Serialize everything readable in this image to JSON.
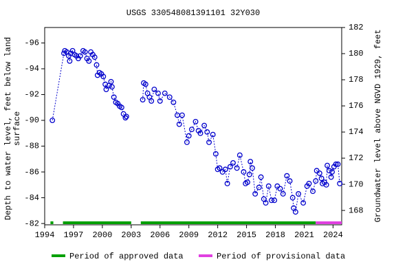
{
  "chart_data": {
    "type": "scatter",
    "title": "USGS 330548081391101 32Y030",
    "ylabel": [
      "Depth to water level, feet below land",
      "surface"
    ],
    "y2label": "Groundwater level above NGVD 1929, feet",
    "xlim": [
      1994,
      2024.9
    ],
    "xticks": [
      1994,
      1997,
      2000,
      2003,
      2006,
      2009,
      2012,
      2015,
      2018,
      2021,
      2024
    ],
    "ylim": [
      -81.9,
      -97.2
    ],
    "yticks": [
      -96,
      -94,
      -92,
      -90,
      -88,
      -86,
      -84,
      -82
    ],
    "y2lim": [
      166.9,
      182
    ],
    "y2ticks": [
      168,
      170,
      172,
      174,
      176,
      178,
      180,
      182
    ],
    "x": [
      1994.8,
      1996.0,
      1996.1,
      1996.3,
      1996.5,
      1996.6,
      1996.7,
      1996.9,
      1997.1,
      1997.3,
      1997.5,
      1997.7,
      1998.0,
      1998.2,
      1998.4,
      1998.6,
      1998.8,
      1999.0,
      1999.2,
      1999.4,
      1999.5,
      1999.7,
      1999.9,
      2000.1,
      2000.3,
      2000.4,
      2000.7,
      2000.9,
      2001.0,
      2001.2,
      2001.4,
      2001.6,
      2001.8,
      2002.0,
      2002.2,
      2002.4,
      2002.5,
      2003.3,
      2004.2,
      2004.3,
      2004.5,
      2004.7,
      2004.9,
      2005.1,
      2005.4,
      2005.8,
      2006.0,
      2006.5,
      2007.0,
      2007.4,
      2007.8,
      2008.0,
      2008.3,
      2008.8,
      2009.0,
      2009.3,
      2009.7,
      2010.0,
      2010.2,
      2010.6,
      2010.9,
      2011.1,
      2011.5,
      2011.8,
      2012.0,
      2012.2,
      2012.5,
      2012.8,
      2013.0,
      2013.3,
      2013.6,
      2014.0,
      2014.3,
      2014.7,
      2014.9,
      2015.1,
      2015.3,
      2015.4,
      2015.6,
      2015.9,
      2016.3,
      2016.5,
      2016.8,
      2017.0,
      2017.3,
      2017.6,
      2017.9,
      2018.2,
      2018.5,
      2018.8,
      2019.2,
      2019.5,
      2019.8,
      2019.9,
      2020.1,
      2020.4,
      2020.9,
      2021.3,
      2021.5,
      2021.9,
      2022.2,
      2022.3,
      2022.6,
      2022.8,
      2022.9,
      2023.1,
      2023.3,
      2023.4,
      2023.6,
      2023.8,
      2023.9,
      2024.1,
      2024.3,
      2024.5,
      2024.7
    ],
    "series": [
      {
        "color": "#0000cc",
        "values": [
          -90.0,
          -95.2,
          -95.4,
          -95.3,
          -95.0,
          -94.6,
          -95.2,
          -95.4,
          -95.1,
          -95.0,
          -94.8,
          -95.0,
          -95.4,
          -95.3,
          -94.8,
          -94.6,
          -95.3,
          -95.1,
          -94.9,
          -94.3,
          -93.5,
          -93.7,
          -93.6,
          -93.4,
          -92.8,
          -92.4,
          -92.7,
          -93.0,
          -92.6,
          -91.8,
          -91.4,
          -91.3,
          -91.1,
          -91.0,
          -90.5,
          -90.2,
          -90.3,
          null,
          -91.6,
          -92.9,
          -92.8,
          -92.1,
          -91.8,
          -91.5,
          -92.4,
          -92.1,
          -91.5,
          -92.1,
          -91.8,
          -91.4,
          -90.4,
          -89.7,
          -90.4,
          -88.3,
          -88.8,
          -89.3,
          -89.9,
          -89.2,
          -89.0,
          -89.6,
          -89.1,
          -88.3,
          -88.9,
          -87.4,
          -86.2,
          -86.3,
          -86.0,
          -86.2,
          -85.1,
          -86.4,
          -86.7,
          -86.3,
          -87.3,
          -86.0,
          -85.1,
          -85.2,
          -85.8,
          -86.8,
          -86.3,
          -84.3,
          -84.8,
          -85.6,
          -83.9,
          -83.6,
          -84.9,
          -83.8,
          -83.8,
          -84.9,
          -84.7,
          -84.3,
          -85.7,
          -85.3,
          -84.0,
          -83.2,
          -82.9,
          -84.3,
          -83.6,
          -84.9,
          -85.1,
          -84.5,
          -85.3,
          -86.1,
          -85.9,
          -85.5,
          -85.1,
          -85.2,
          -85.0,
          -86.5,
          -86.1,
          -85.6,
          -86.0,
          -86.4,
          -86.6,
          -86.6,
          -85.1
        ]
      }
    ],
    "legend": [
      {
        "label": "Period of approved data",
        "color": "#00a000",
        "spans": [
          [
            1994.6,
            1994.9
          ],
          [
            1995.9,
            2003.0
          ],
          [
            2004.0,
            2022.2
          ]
        ]
      },
      {
        "label": "Period of provisional data",
        "color": "#e040e0",
        "spans": [
          [
            2022.2,
            2024.9
          ]
        ]
      }
    ]
  }
}
